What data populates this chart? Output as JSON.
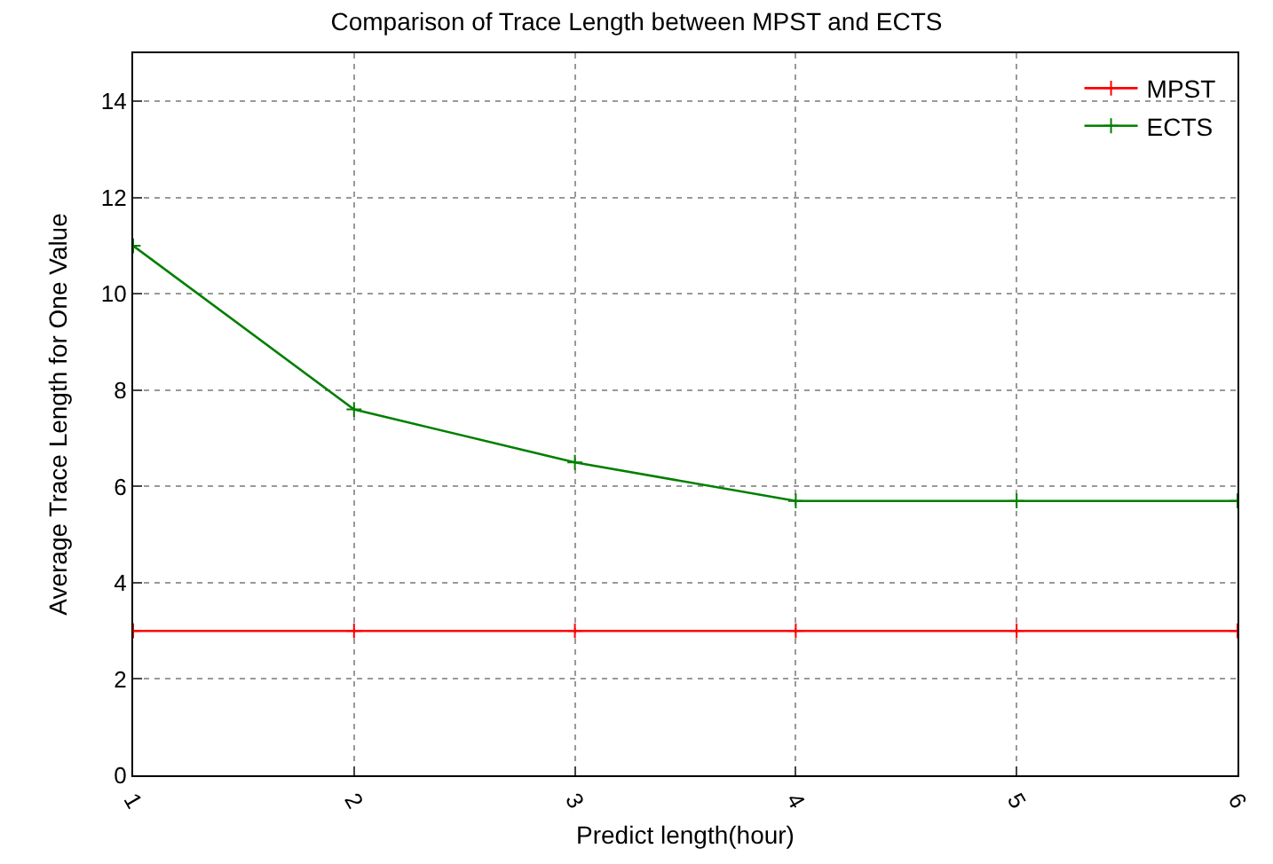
{
  "chart_data": {
    "type": "line",
    "title": "Comparison of Trace Length between MPST and ECTS",
    "xlabel": "Predict length(hour)",
    "ylabel": "Average Trace Length for One Value",
    "x": [
      1,
      2,
      3,
      4,
      5,
      6
    ],
    "series": [
      {
        "name": "MPST",
        "color": "#ff0000",
        "values": [
          3,
          3,
          3,
          3,
          3,
          3
        ]
      },
      {
        "name": "ECTS",
        "color": "#007f00",
        "values": [
          11,
          7.6,
          6.5,
          5.7,
          5.7,
          5.7
        ]
      }
    ],
    "xlim": [
      1,
      6
    ],
    "xticks": [
      1,
      2,
      3,
      4,
      5,
      6
    ],
    "ylim": [
      0,
      15
    ],
    "yticks": [
      0,
      2,
      4,
      6,
      8,
      10,
      12,
      14
    ],
    "grid": true,
    "legend": "top right",
    "marker": "cross",
    "line_style": "solid"
  }
}
